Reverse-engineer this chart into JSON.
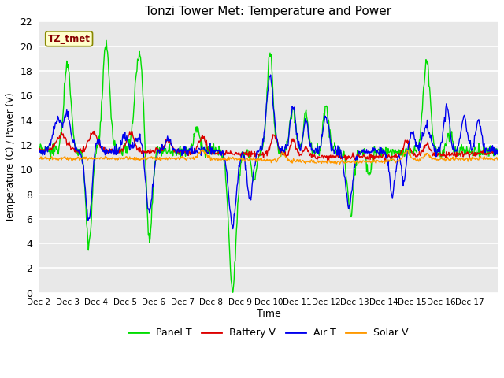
{
  "title": "Tonzi Tower Met: Temperature and Power",
  "xlabel": "Time",
  "ylabel": "Temperature (C) / Power (V)",
  "ylim": [
    0,
    22
  ],
  "figure_bg": "#ffffff",
  "plot_bg": "#e8e8e8",
  "label_box": "TZ_tmet",
  "x_labels": [
    "Dec 2",
    "Dec 3",
    "Dec 4",
    "Dec 5",
    "Dec 6",
    "Dec 7",
    "Dec 8",
    "Dec 9",
    "Dec 10",
    "Dec 11",
    "Dec 12",
    "Dec 13",
    "Dec 14",
    "Dec 15",
    "Dec 16",
    "Dec 17"
  ],
  "colors": {
    "panel_t": "#00dd00",
    "battery_v": "#dd0000",
    "air_t": "#0000ee",
    "solar_v": "#ff9900"
  },
  "legend_labels": [
    "Panel T",
    "Battery V",
    "Air T",
    "Solar V"
  ]
}
